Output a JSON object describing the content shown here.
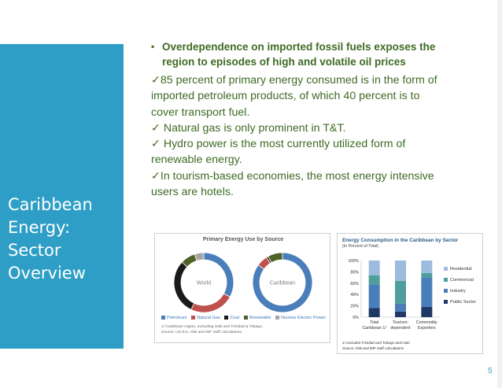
{
  "sidebar": {
    "title_lines": [
      "Caribbean",
      "Energy:",
      "Sector",
      "Overview"
    ]
  },
  "headline": {
    "bullet": "▪",
    "line1": "Overdependence on imported fossil fuels exposes the",
    "line2": "region to episodes of high and volatile oil prices"
  },
  "points": {
    "check": "✓",
    "lines": [
      "85 percent of primary energy consumed is in the form of",
      "imported petroleum products, of which 40 percent is to",
      "cover transport fuel.",
      " Natural gas is only prominent in T&T.",
      " Hydro power is the most currently utilized form of",
      "renewable energy.",
      "In tourism-based economies, the most energy intensive",
      "users are hotels."
    ]
  },
  "colors": {
    "petroleum": "#4a7ebb",
    "natural_gas": "#c0504d",
    "coal": "#1a1a1a",
    "renewable": "#4f6228",
    "nuclear": "#a6a6a6"
  },
  "chart_data": [
    {
      "type": "donut",
      "title": "Primary Energy Use by Source",
      "charts": [
        {
          "label": "World",
          "slices": [
            {
              "name": "Petroleum",
              "value": 33
            },
            {
              "name": "Natural Gas",
              "value": 24
            },
            {
              "name": "Coal",
              "value": 30
            },
            {
              "name": "Renewable",
              "value": 8
            },
            {
              "name": "Nuclear Electric Power",
              "value": 5
            }
          ]
        },
        {
          "label": "Caribbean",
          "slices": [
            {
              "name": "Petroleum",
              "value": 85
            },
            {
              "name": "Natural Gas",
              "value": 6
            },
            {
              "name": "Coal",
              "value": 1
            },
            {
              "name": "Renewable",
              "value": 8
            },
            {
              "name": "Nuclear Electric Power",
              "value": 0
            }
          ]
        }
      ],
      "legend": [
        "Petroleum",
        "Natural Gas",
        "Coal",
        "Renewable",
        "Nuclear Electric Power"
      ],
      "notes": [
        "1/ Caribbean region, excluding Haiti and Trinidad & Tobago.",
        "Source: US EIA, IDB and IMF staff calculations."
      ]
    },
    {
      "type": "bar",
      "stacked": true,
      "title": "Energy Consumption in the Caribbean by Sector",
      "subtitle": "(In Percent of Total)",
      "categories": [
        [
          "Total",
          "Caribbean 1/"
        ],
        [
          "Tourism-",
          "dependent"
        ],
        [
          "Commodity",
          "Exporters"
        ]
      ],
      "ylim": [
        0,
        100
      ],
      "yticks": [
        "0%",
        "20%",
        "40%",
        "60%",
        "80%",
        "100%"
      ],
      "series": [
        {
          "name": "Public Sector",
          "values": [
            16,
            10,
            18
          ],
          "color": "#1f3864"
        },
        {
          "name": "Industry",
          "values": [
            42,
            14,
            52
          ],
          "color": "#4a7ebb"
        },
        {
          "name": "Commercial",
          "values": [
            16,
            40,
            8
          ],
          "color": "#4f9e9b"
        },
        {
          "name": "Residential",
          "values": [
            26,
            36,
            22
          ],
          "color": "#9dbbdc"
        }
      ],
      "legend_order": [
        "Residential",
        "Commercial",
        "Industry",
        "Public Sector"
      ],
      "notes": [
        "1/ excludes Trinidad and Tobago and Haiti",
        "Source: IDB and IMF staff calculations"
      ]
    }
  ],
  "footer": {
    "page_number": "5"
  }
}
